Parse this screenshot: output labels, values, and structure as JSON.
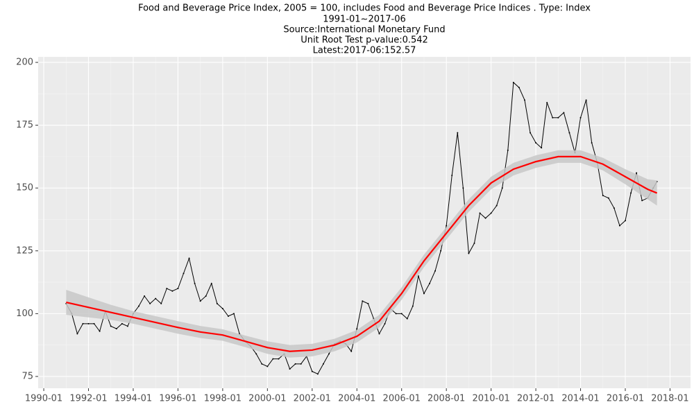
{
  "chart_data": {
    "type": "line",
    "title": "Food and Beverage Price Index, 2005 = 100, includes Food and Beverage Price Indices . Type: Index",
    "subtitles": [
      "1991-01~2017-06",
      "Source:International Monetary Fund",
      "Unit Root Test p-value:0.542",
      "Latest:2017-06:152.57"
    ],
    "xlim": [
      "1989-10",
      "2018-12"
    ],
    "xticks": [
      "1990-01",
      "1992-01",
      "1994-01",
      "1996-01",
      "1998-01",
      "2000-01",
      "2002-01",
      "2004-01",
      "2006-01",
      "2008-01",
      "2010-01",
      "2012-01",
      "2014-01",
      "2016-01",
      "2018-01"
    ],
    "ylim": [
      70.3,
      202.2
    ],
    "yticks": [
      75,
      100,
      125,
      150,
      175,
      200
    ],
    "grid": true,
    "series": [
      {
        "color": "#000000",
        "x": [
          "1991-01",
          "1991-04",
          "1991-07",
          "1991-10",
          "1992-01",
          "1992-04",
          "1992-07",
          "1992-10",
          "1993-01",
          "1993-04",
          "1993-07",
          "1993-10",
          "1994-01",
          "1994-04",
          "1994-07",
          "1994-10",
          "1995-01",
          "1995-04",
          "1995-07",
          "1995-10",
          "1996-01",
          "1996-04",
          "1996-07",
          "1996-10",
          "1997-01",
          "1997-04",
          "1997-07",
          "1997-10",
          "1998-01",
          "1998-04",
          "1998-07",
          "1998-10",
          "1999-01",
          "1999-04",
          "1999-07",
          "1999-10",
          "2000-01",
          "2000-04",
          "2000-07",
          "2000-10",
          "2001-01",
          "2001-04",
          "2001-07",
          "2001-10",
          "2002-01",
          "2002-04",
          "2002-07",
          "2002-10",
          "2003-01",
          "2003-04",
          "2003-07",
          "2003-10",
          "2004-01",
          "2004-04",
          "2004-07",
          "2004-10",
          "2005-01",
          "2005-04",
          "2005-07",
          "2005-10",
          "2006-01",
          "2006-04",
          "2006-07",
          "2006-10",
          "2007-01",
          "2007-04",
          "2007-07",
          "2007-10",
          "2008-01",
          "2008-04",
          "2008-07",
          "2008-10",
          "2009-01",
          "2009-04",
          "2009-07",
          "2009-10",
          "2010-01",
          "2010-04",
          "2010-07",
          "2010-10",
          "2011-01",
          "2011-04",
          "2011-07",
          "2011-10",
          "2012-01",
          "2012-04",
          "2012-07",
          "2012-10",
          "2013-01",
          "2013-04",
          "2013-07",
          "2013-10",
          "2014-01",
          "2014-04",
          "2014-07",
          "2014-10",
          "2015-01",
          "2015-04",
          "2015-07",
          "2015-10",
          "2016-01",
          "2016-04",
          "2016-07",
          "2016-10",
          "2017-01",
          "2017-04",
          "2017-06"
        ],
        "values": [
          104,
          100,
          92,
          96,
          96,
          96,
          93,
          101,
          95,
          94,
          96,
          95,
          100,
          103,
          107,
          104,
          106,
          104,
          110,
          109,
          110,
          116,
          122,
          112,
          105,
          107,
          112,
          104,
          102,
          99,
          100,
          92,
          89,
          87,
          84,
          80,
          79,
          82,
          82,
          84,
          78,
          80,
          80,
          83,
          77,
          76,
          80,
          84,
          88,
          89,
          88,
          85,
          94,
          105,
          104,
          98,
          92,
          96,
          102,
          100,
          100,
          98,
          103,
          115,
          108,
          112,
          117,
          125,
          135,
          155,
          172,
          150,
          124,
          128,
          140,
          138,
          140,
          143,
          150,
          165,
          192,
          190,
          185,
          172,
          168,
          166,
          184,
          178,
          178,
          180,
          172,
          164,
          178,
          185,
          168,
          160,
          147,
          146,
          142,
          135,
          137,
          148,
          156,
          145,
          146,
          150,
          152.57
        ]
      },
      {
        "color": "#ff0000",
        "band_color": "#c8c8c8",
        "x": [
          "1991-01",
          "1992-01",
          "1993-01",
          "1994-01",
          "1995-01",
          "1996-01",
          "1997-01",
          "1998-01",
          "1999-01",
          "2000-01",
          "2001-01",
          "2002-01",
          "2003-01",
          "2004-01",
          "2005-01",
          "2006-01",
          "2007-01",
          "2008-01",
          "2009-01",
          "2010-01",
          "2011-01",
          "2012-01",
          "2013-01",
          "2014-01",
          "2015-01",
          "2016-01",
          "2017-01",
          "2017-06"
        ],
        "values": [
          104.5,
          102.5,
          100.5,
          98.5,
          96.5,
          94.5,
          92.7,
          91.5,
          89,
          86.5,
          85,
          85.5,
          87.5,
          91,
          97,
          108,
          121,
          132,
          143,
          152,
          157.5,
          160.5,
          162.5,
          162.5,
          159.5,
          154.5,
          149.5,
          148
        ],
        "lower": [
          99.5,
          98.5,
          97.5,
          96,
          94,
          92,
          90.3,
          89.2,
          86.7,
          84,
          82.5,
          83,
          85,
          88.5,
          94.5,
          105.5,
          118.5,
          129.5,
          140.5,
          149.5,
          155,
          158,
          160,
          160,
          157,
          151.5,
          145.5,
          143
        ],
        "upper": [
          109.5,
          106.5,
          103.5,
          101,
          99,
          97,
          95.1,
          93.8,
          91.3,
          89,
          87.5,
          88,
          90,
          93.5,
          99.5,
          110.5,
          123.5,
          134.5,
          145.5,
          154.5,
          160,
          163,
          165,
          165,
          162,
          157.5,
          153.5,
          153
        ]
      }
    ]
  }
}
